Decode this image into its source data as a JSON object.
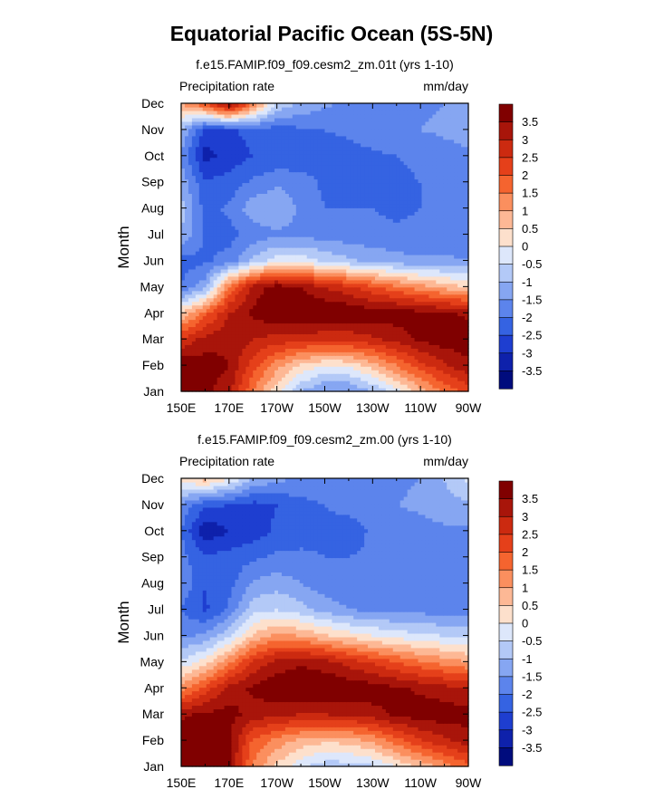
{
  "title": "Equatorial Pacific Ocean (5S-5N)",
  "chart_data": [
    {
      "type": "heatmap",
      "title": "f.e15.FAMIP.f09_f09.cesm2_zm.01t (yrs 1-10)",
      "left_label": "Precipitation rate",
      "right_label": "mm/day",
      "xlabel": "",
      "ylabel": "Month",
      "xticks": [
        "150E",
        "170E",
        "170W",
        "150W",
        "130W",
        "110W",
        "90W"
      ],
      "yticks": [
        "Jan",
        "Feb",
        "Mar",
        "Apr",
        "May",
        "Jun",
        "Jul",
        "Aug",
        "Sep",
        "Oct",
        "Nov",
        "Dec"
      ],
      "colorbar_levels": [
        "3.5",
        "3",
        "2.5",
        "2",
        "1.5",
        "1",
        "0.5",
        "0",
        "-0.5",
        "-1",
        "-1.5",
        "-2",
        "-2.5",
        "-3",
        "-3.5"
      ],
      "colorbar_colors": [
        "#800000",
        "#a8150a",
        "#cc2a10",
        "#e5401a",
        "#f5642f",
        "#fb8f5e",
        "#fdb895",
        "#fde0cc",
        "#dde7fb",
        "#b3c9f7",
        "#86a6f2",
        "#5c84ec",
        "#3563e2",
        "#1e3ed0",
        "#0e21ab",
        "#000c7d"
      ],
      "grid": [
        [
          3.8,
          3.6,
          3.2,
          1.5,
          0.2,
          -1.0,
          -1.6,
          -1.6,
          -1.0,
          -0.2,
          0.7,
          1.6,
          2.2
        ],
        [
          3.9,
          3.8,
          3.5,
          2.2,
          1.2,
          0.4,
          0.0,
          0.1,
          0.7,
          1.5,
          2.3,
          2.9,
          3.4
        ],
        [
          2.6,
          3.2,
          3.4,
          3.0,
          2.8,
          2.7,
          2.6,
          2.6,
          2.9,
          3.2,
          3.6,
          3.8,
          3.8
        ],
        [
          0.5,
          1.8,
          3.0,
          3.6,
          4.0,
          4.0,
          4.0,
          4.0,
          3.8,
          3.8,
          3.7,
          3.6,
          3.4
        ],
        [
          -2.0,
          -1.2,
          1.6,
          3.2,
          3.8,
          3.5,
          3.0,
          2.6,
          2.1,
          1.6,
          1.2,
          0.8,
          0.5
        ],
        [
          -2.2,
          -2.1,
          -1.8,
          -0.9,
          -0.2,
          -0.2,
          -0.6,
          -0.9,
          -1.1,
          -1.3,
          -1.4,
          -1.4,
          -1.5
        ],
        [
          -1.0,
          -2.1,
          -2.2,
          -1.8,
          -1.6,
          -1.7,
          -1.7,
          -1.8,
          -1.9,
          -1.9,
          -1.9,
          -1.8,
          -1.8
        ],
        [
          -0.8,
          -2.2,
          -1.9,
          -1.2,
          -1.0,
          -1.6,
          -2.0,
          -2.0,
          -2.0,
          -2.1,
          -2.0,
          -2.0,
          -2.0
        ],
        [
          -1.2,
          -2.4,
          -2.3,
          -1.9,
          -1.6,
          -1.8,
          -2.1,
          -2.2,
          -2.1,
          -2.1,
          -2.0,
          -2.0,
          -1.9
        ],
        [
          -1.6,
          -3.2,
          -2.8,
          -2.5,
          -2.4,
          -2.3,
          -2.2,
          -2.2,
          -2.1,
          -2.0,
          -1.9,
          -1.7,
          -1.6
        ],
        [
          -1.0,
          -2.7,
          -2.6,
          -2.3,
          -2.2,
          -2.1,
          -2.0,
          -1.9,
          -1.7,
          -1.6,
          -1.5,
          -1.4,
          -1.3
        ],
        [
          1.0,
          2.0,
          3.6,
          1.6,
          -0.6,
          -1.1,
          -1.4,
          -1.6,
          -1.8,
          -1.7,
          -1.6,
          -1.5,
          -1.4
        ]
      ]
    },
    {
      "type": "heatmap",
      "title": "f.e15.FAMIP.f09_f09.cesm2_zm.00 (yrs 1-10)",
      "left_label": "Precipitation rate",
      "right_label": "mm/day",
      "xlabel": "",
      "ylabel": "Month",
      "xticks": [
        "150E",
        "170E",
        "170W",
        "150W",
        "130W",
        "110W",
        "90W"
      ],
      "yticks": [
        "Jan",
        "Feb",
        "Mar",
        "Apr",
        "May",
        "Jun",
        "Jul",
        "Aug",
        "Sep",
        "Oct",
        "Nov",
        "Dec"
      ],
      "colorbar_levels": [
        "3.5",
        "3",
        "2.5",
        "2",
        "1.5",
        "1",
        "0.5",
        "0",
        "-0.5",
        "-1",
        "-1.5",
        "-2",
        "-2.5",
        "-3",
        "-3.5"
      ],
      "colorbar_colors": [
        "#800000",
        "#a8150a",
        "#cc2a10",
        "#e5401a",
        "#f5642f",
        "#fb8f5e",
        "#fdb895",
        "#fde0cc",
        "#dde7fb",
        "#b3c9f7",
        "#86a6f2",
        "#5c84ec",
        "#3563e2",
        "#1e3ed0",
        "#0e21ab",
        "#000c7d"
      ],
      "grid": [
        [
          3.8,
          3.9,
          3.7,
          1.4,
          0.4,
          -0.4,
          -0.8,
          -0.8,
          -0.6,
          0.0,
          0.6,
          1.2,
          1.8
        ],
        [
          3.9,
          3.9,
          3.6,
          1.9,
          1.3,
          0.8,
          0.6,
          0.7,
          1.1,
          1.8,
          2.4,
          2.9,
          3.3
        ],
        [
          3.4,
          3.6,
          3.7,
          3.3,
          3.1,
          3.0,
          3.0,
          3.1,
          3.3,
          3.6,
          3.8,
          3.8,
          3.7
        ],
        [
          1.2,
          2.2,
          3.2,
          3.6,
          3.9,
          4.0,
          4.0,
          3.9,
          3.8,
          3.6,
          3.4,
          3.2,
          3.0
        ],
        [
          -0.4,
          0.2,
          1.4,
          2.6,
          3.2,
          3.4,
          3.2,
          2.8,
          2.4,
          2.0,
          1.6,
          1.3,
          1.0
        ],
        [
          -1.6,
          -1.4,
          -0.6,
          0.6,
          1.2,
          1.0,
          0.6,
          0.3,
          0.0,
          -0.2,
          -0.4,
          -0.5,
          -0.6
        ],
        [
          -2.0,
          -2.6,
          -1.9,
          -0.7,
          -0.5,
          -0.8,
          -1.2,
          -1.5,
          -1.6,
          -1.7,
          -1.7,
          -1.7,
          -1.7
        ],
        [
          -1.6,
          -2.5,
          -2.2,
          -1.4,
          -1.2,
          -1.5,
          -1.8,
          -1.9,
          -1.9,
          -1.9,
          -1.8,
          -1.8,
          -1.8
        ],
        [
          -1.8,
          -2.4,
          -2.3,
          -2.1,
          -1.9,
          -1.9,
          -2.0,
          -2.0,
          -1.9,
          -1.9,
          -1.8,
          -1.8,
          -1.8
        ],
        [
          -2.0,
          -3.4,
          -3.0,
          -2.8,
          -2.4,
          -2.2,
          -2.1,
          -2.3,
          -1.9,
          -1.8,
          -1.7,
          -1.6,
          -1.6
        ],
        [
          -1.6,
          -2.4,
          -2.5,
          -2.7,
          -2.5,
          -2.2,
          -2.0,
          -1.8,
          -1.6,
          -1.5,
          -1.4,
          -1.2,
          -1.1
        ],
        [
          0.2,
          0.8,
          0.0,
          -1.0,
          -1.4,
          -1.5,
          -1.6,
          -1.7,
          -1.7,
          -1.6,
          -1.5,
          -1.0,
          -0.4
        ]
      ]
    }
  ]
}
